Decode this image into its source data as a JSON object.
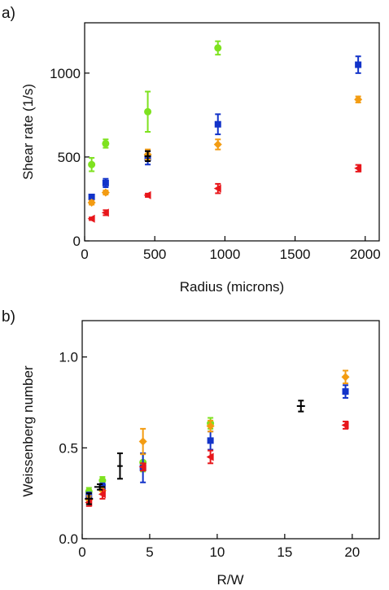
{
  "chart_data": [
    {
      "type": "scatter",
      "panel_label": "a)",
      "xlabel": "Radius (microns)",
      "ylabel": "Shear rate (1/s)",
      "xlim": [
        0,
        2100
      ],
      "ylim": [
        0,
        1300
      ],
      "xticks": [
        0,
        500,
        1000,
        1500,
        2000
      ],
      "yticks": [
        0,
        500,
        1000
      ],
      "grid": false,
      "legend": "none",
      "series": [
        {
          "color": "#7ee21f",
          "marker": "circle",
          "points": [
            {
              "x": 50,
              "y": 455,
              "err": 40
            },
            {
              "x": 150,
              "y": 580,
              "err": 25
            },
            {
              "x": 450,
              "y": 770,
              "err": 120
            },
            {
              "x": 950,
              "y": 1150,
              "err": 40
            }
          ]
        },
        {
          "color": "#1233c9",
          "marker": "square",
          "points": [
            {
              "x": 50,
              "y": 262,
              "err": 12
            },
            {
              "x": 150,
              "y": 345,
              "err": 25
            },
            {
              "x": 450,
              "y": 495,
              "err": 40
            },
            {
              "x": 950,
              "y": 695,
              "err": 60
            },
            {
              "x": 1950,
              "y": 1050,
              "err": 50
            }
          ]
        },
        {
          "color": "#f39c12",
          "marker": "diamond",
          "points": [
            {
              "x": 50,
              "y": 228,
              "err": 12
            },
            {
              "x": 150,
              "y": 288,
              "err": 12
            },
            {
              "x": 450,
              "y": 515,
              "err": 30
            },
            {
              "x": 950,
              "y": 575,
              "err": 30
            },
            {
              "x": 1950,
              "y": 843,
              "err": 18
            }
          ]
        },
        {
          "color": "#e8161b",
          "marker": "triangle-left",
          "points": [
            {
              "x": 50,
              "y": 132,
              "err": 8
            },
            {
              "x": 150,
              "y": 168,
              "err": 15
            },
            {
              "x": 450,
              "y": 272,
              "err": 10
            },
            {
              "x": 950,
              "y": 312,
              "err": 28
            },
            {
              "x": 1950,
              "y": 433,
              "err": 20
            }
          ]
        },
        {
          "color": "#000000",
          "marker": "cross",
          "points": [
            {
              "x": 450,
              "y": 505,
              "err": 30
            }
          ]
        }
      ]
    },
    {
      "type": "scatter",
      "panel_label": "b)",
      "xlabel": "R/W",
      "ylabel": "Weissenberg number",
      "xlim": [
        0,
        22
      ],
      "ylim": [
        0,
        1.2
      ],
      "xticks": [
        0,
        5,
        10,
        15,
        20
      ],
      "yticks": [
        "0.0",
        "0.5",
        "1.0"
      ],
      "grid": false,
      "legend": "none",
      "series": [
        {
          "color": "#7ee21f",
          "marker": "circle",
          "points": [
            {
              "x": 0.5,
              "y": 0.26,
              "err": 0.02
            },
            {
              "x": 1.5,
              "y": 0.32,
              "err": 0.02
            },
            {
              "x": 4.5,
              "y": 0.42,
              "err": 0.05
            },
            {
              "x": 9.5,
              "y": 0.635,
              "err": 0.03
            }
          ]
        },
        {
          "color": "#1233c9",
          "marker": "square",
          "points": [
            {
              "x": 0.5,
              "y": 0.235,
              "err": 0.02
            },
            {
              "x": 1.5,
              "y": 0.285,
              "err": 0.02
            },
            {
              "x": 4.5,
              "y": 0.39,
              "err": 0.08
            },
            {
              "x": 9.5,
              "y": 0.54,
              "err": 0.05
            },
            {
              "x": 19.5,
              "y": 0.81,
              "err": 0.035
            }
          ]
        },
        {
          "color": "#f39c12",
          "marker": "diamond",
          "points": [
            {
              "x": 0.5,
              "y": 0.215,
              "err": 0.02
            },
            {
              "x": 1.5,
              "y": 0.265,
              "err": 0.02
            },
            {
              "x": 4.5,
              "y": 0.535,
              "err": 0.07
            },
            {
              "x": 9.5,
              "y": 0.62,
              "err": 0.03
            },
            {
              "x": 19.5,
              "y": 0.89,
              "err": 0.035
            }
          ]
        },
        {
          "color": "#e8161b",
          "marker": "triangle-left",
          "points": [
            {
              "x": 0.5,
              "y": 0.2,
              "err": 0.02
            },
            {
              "x": 1.5,
              "y": 0.245,
              "err": 0.025
            },
            {
              "x": 4.5,
              "y": 0.395,
              "err": 0.02
            },
            {
              "x": 9.5,
              "y": 0.45,
              "err": 0.035
            },
            {
              "x": 19.5,
              "y": 0.625,
              "err": 0.02
            }
          ]
        },
        {
          "color": "#000000",
          "marker": "cross",
          "points": [
            {
              "x": 0.5,
              "y": 0.22,
              "err": 0.03,
              "xerr": 0.3
            },
            {
              "x": 1.3,
              "y": 0.285,
              "err": 0.015,
              "xerr": 0.4
            },
            {
              "x": 2.8,
              "y": 0.4,
              "err": 0.07,
              "xerr": 0.2
            },
            {
              "x": 16.2,
              "y": 0.73,
              "err": 0.03,
              "xerr": 0.3
            }
          ]
        }
      ]
    }
  ]
}
